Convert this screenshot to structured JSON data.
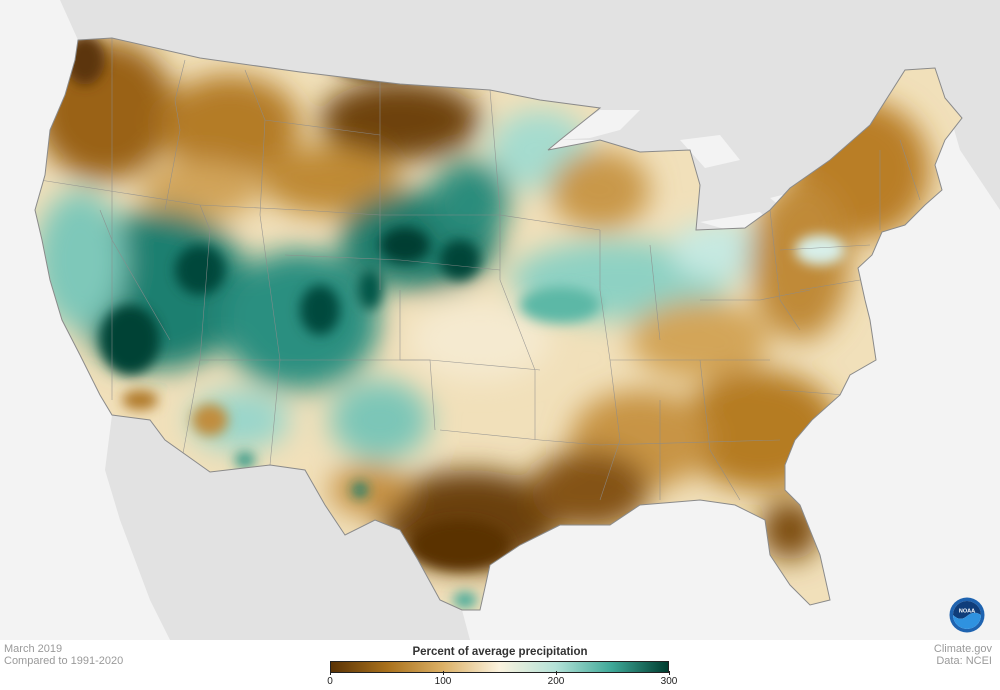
{
  "map": {
    "date_label": "March 2019",
    "baseline_label": "Compared to 1991-2020",
    "credit_site": "Climate.gov",
    "credit_data": "Data: NCEI",
    "logo_text": "NOAA"
  },
  "legend": {
    "title": "Percent of average precipitation",
    "ticks": [
      "0",
      "100",
      "200",
      "300"
    ],
    "tick_values": [
      0,
      100,
      200,
      300
    ],
    "range": [
      0,
      300
    ],
    "colors": {
      "dry_extreme": "#5a3305",
      "dry": "#a9711c",
      "dry_light": "#dcb167",
      "normal": "#fbf3df",
      "wet_light": "#b4e2d8",
      "wet": "#3fa898",
      "wet_extreme": "#003d30"
    }
  },
  "palette": {
    "land_background": "#f3f3f3",
    "foreign_land": "#e2e2e2",
    "state_lines": "#8a8a8a"
  }
}
